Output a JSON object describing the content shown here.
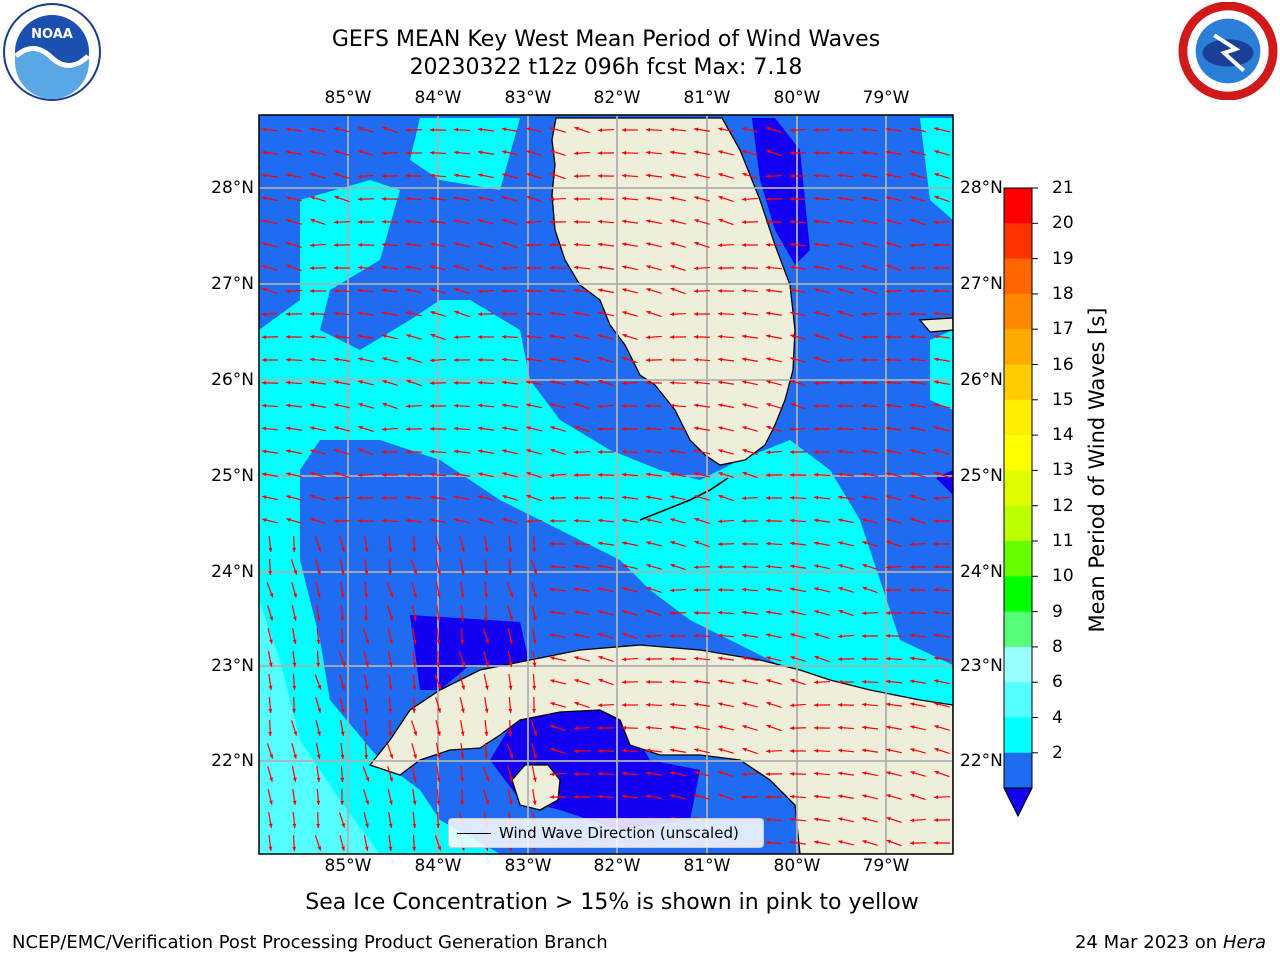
{
  "header": {
    "title_line1": "GEFS MEAN Key West Mean Period of Wind Waves",
    "title_line2": "20230322 t12z 096h fcst   Max: 7.18"
  },
  "logos": {
    "noaa": {
      "text": "NOAA",
      "icon": "noaa-logo"
    },
    "nws": {
      "icon": "nws-logo"
    }
  },
  "map": {
    "lon_ticks": [
      "85°W",
      "84°W",
      "83°W",
      "82°W",
      "81°W",
      "80°W",
      "79°W"
    ],
    "lat_ticks": [
      "28°N",
      "27°N",
      "26°N",
      "25°N",
      "24°N",
      "23°N",
      "22°N"
    ],
    "colors": {
      "land": "#efeedb",
      "period_2_4": "#1f6cf3",
      "period_4_6": "#00ffff",
      "period_6_8": "#55ffff",
      "period_below_2": "#1400f0",
      "arrows": "#ff0000",
      "grid": "#b0b0b0"
    }
  },
  "legend": {
    "label": "Wind Wave Direction (unscaled)"
  },
  "colorbar": {
    "label": "Mean Period of Wind Waves [s]",
    "ticks": [
      "21",
      "20",
      "19",
      "18",
      "17",
      "16",
      "15",
      "14",
      "13",
      "12",
      "11",
      "10",
      "9",
      "8",
      "6",
      "4",
      "2"
    ],
    "colors": [
      "#ff0000",
      "#ff3300",
      "#ff6600",
      "#ff8800",
      "#ffaa00",
      "#ffcc00",
      "#ffee00",
      "#ffff00",
      "#dfff00",
      "#bbff00",
      "#66ff00",
      "#00ff00",
      "#55ff77",
      "#99ffff",
      "#55ffff",
      "#00ffff",
      "#1f6cf3",
      "#1400f0"
    ]
  },
  "notes": {
    "ice": "Sea Ice Concentration > 15% is shown in pink to yellow"
  },
  "footer": {
    "left": "NCEP/EMC/Verification Post Processing Product Generation Branch",
    "date": "24 Mar 2023 on",
    "host": "Hera"
  }
}
